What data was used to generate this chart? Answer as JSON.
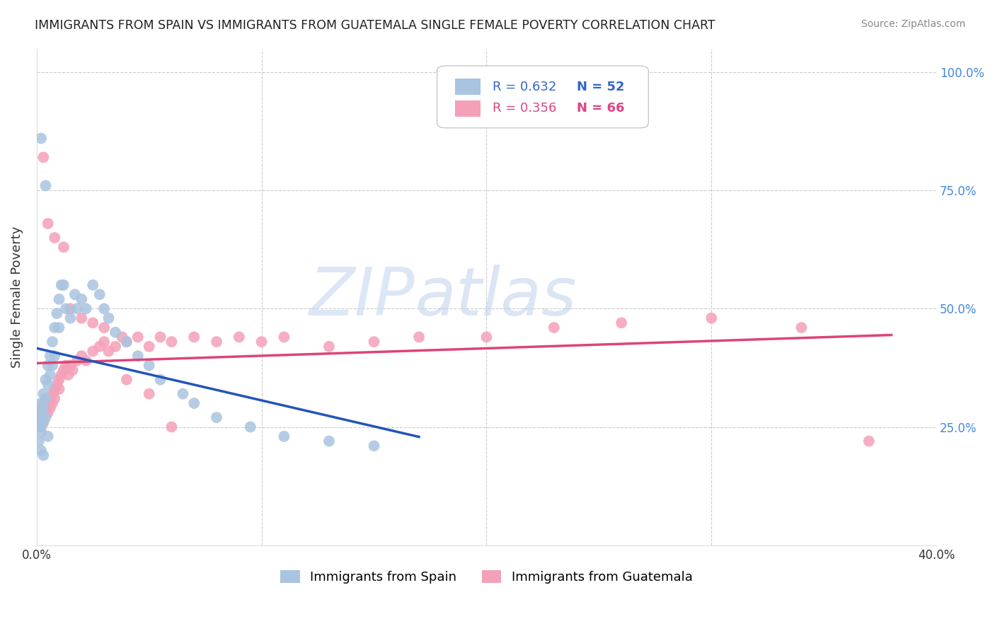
{
  "title": "IMMIGRANTS FROM SPAIN VS IMMIGRANTS FROM GUATEMALA SINGLE FEMALE POVERTY CORRELATION CHART",
  "source": "Source: ZipAtlas.com",
  "ylabel": "Single Female Poverty",
  "color_spain": "#a8c4e0",
  "color_guatemala": "#f4a0b8",
  "color_line_spain": "#2255bb",
  "color_line_guatemala": "#dd4477",
  "watermark_zip": "ZIP",
  "watermark_atlas": "atlas",
  "xlim": [
    0.0,
    0.4
  ],
  "ylim": [
    0.0,
    1.05
  ],
  "spain_x": [
    0.001,
    0.001,
    0.001,
    0.002,
    0.002,
    0.002,
    0.002,
    0.003,
    0.003,
    0.003,
    0.003,
    0.004,
    0.004,
    0.004,
    0.005,
    0.005,
    0.005,
    0.006,
    0.006,
    0.007,
    0.007,
    0.008,
    0.008,
    0.009,
    0.01,
    0.01,
    0.011,
    0.012,
    0.013,
    0.015,
    0.017,
    0.018,
    0.02,
    0.022,
    0.025,
    0.028,
    0.03,
    0.032,
    0.035,
    0.04,
    0.045,
    0.05,
    0.055,
    0.065,
    0.07,
    0.08,
    0.095,
    0.11,
    0.13,
    0.15,
    0.002,
    0.004
  ],
  "spain_y": [
    0.28,
    0.25,
    0.22,
    0.3,
    0.27,
    0.24,
    0.2,
    0.32,
    0.29,
    0.26,
    0.19,
    0.35,
    0.31,
    0.27,
    0.38,
    0.34,
    0.23,
    0.4,
    0.36,
    0.43,
    0.38,
    0.46,
    0.4,
    0.49,
    0.52,
    0.46,
    0.55,
    0.55,
    0.5,
    0.48,
    0.53,
    0.5,
    0.52,
    0.5,
    0.55,
    0.53,
    0.5,
    0.48,
    0.45,
    0.43,
    0.4,
    0.38,
    0.35,
    0.32,
    0.3,
    0.27,
    0.25,
    0.23,
    0.22,
    0.21,
    0.86,
    0.76
  ],
  "guatemala_x": [
    0.001,
    0.001,
    0.002,
    0.002,
    0.002,
    0.003,
    0.003,
    0.003,
    0.004,
    0.004,
    0.005,
    0.005,
    0.006,
    0.006,
    0.007,
    0.007,
    0.008,
    0.008,
    0.009,
    0.01,
    0.01,
    0.011,
    0.012,
    0.013,
    0.014,
    0.015,
    0.016,
    0.018,
    0.02,
    0.022,
    0.025,
    0.028,
    0.03,
    0.032,
    0.035,
    0.038,
    0.04,
    0.045,
    0.05,
    0.055,
    0.06,
    0.07,
    0.08,
    0.09,
    0.1,
    0.11,
    0.13,
    0.15,
    0.17,
    0.2,
    0.23,
    0.26,
    0.3,
    0.34,
    0.37,
    0.003,
    0.005,
    0.008,
    0.012,
    0.015,
    0.02,
    0.025,
    0.03,
    0.04,
    0.05,
    0.06
  ],
  "guatemala_y": [
    0.28,
    0.26,
    0.29,
    0.27,
    0.25,
    0.3,
    0.28,
    0.26,
    0.31,
    0.29,
    0.3,
    0.28,
    0.31,
    0.29,
    0.32,
    0.3,
    0.33,
    0.31,
    0.34,
    0.35,
    0.33,
    0.36,
    0.37,
    0.38,
    0.36,
    0.38,
    0.37,
    0.39,
    0.4,
    0.39,
    0.41,
    0.42,
    0.43,
    0.41,
    0.42,
    0.44,
    0.43,
    0.44,
    0.42,
    0.44,
    0.43,
    0.44,
    0.43,
    0.44,
    0.43,
    0.44,
    0.42,
    0.43,
    0.44,
    0.44,
    0.46,
    0.47,
    0.48,
    0.46,
    0.22,
    0.82,
    0.68,
    0.65,
    0.63,
    0.5,
    0.48,
    0.47,
    0.46,
    0.35,
    0.32,
    0.25
  ]
}
